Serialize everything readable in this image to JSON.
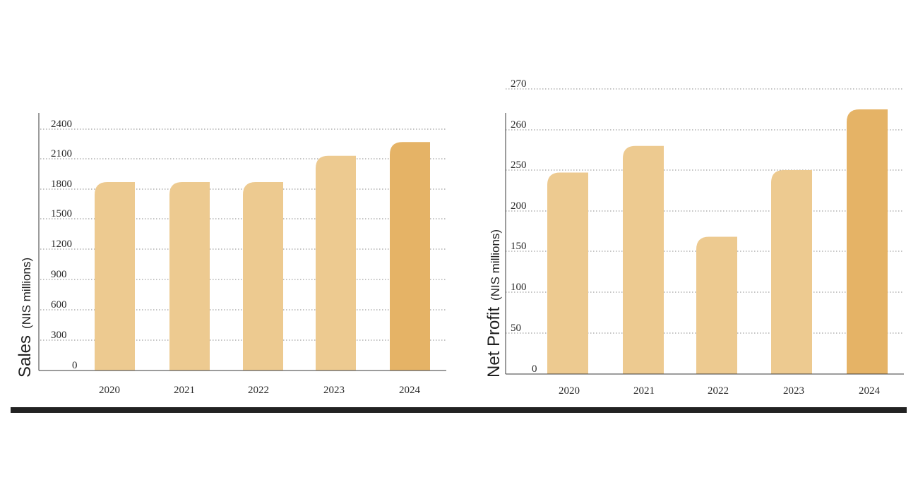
{
  "chart_data": [
    {
      "type": "bar",
      "categories": [
        "2020",
        "2021",
        "2022",
        "2023",
        "2024"
      ],
      "values": [
        1870,
        1870,
        1870,
        2130,
        2270
      ],
      "ylabel": "Sales",
      "ylabel_unit": "(NIS millions)",
      "yticks": [
        0,
        300,
        600,
        900,
        1200,
        1500,
        1800,
        2100,
        2400
      ],
      "ylim": [
        0,
        2400
      ],
      "grid": true,
      "colors": [
        "#edca90",
        "#edca90",
        "#edca90",
        "#edca90",
        "#e5b366"
      ]
    },
    {
      "type": "bar",
      "categories": [
        "2020",
        "2021",
        "2022",
        "2023",
        "2024"
      ],
      "values": [
        247,
        256,
        168,
        250,
        265
      ],
      "ylabel": "Net Profit",
      "ylabel_unit": "(NIS millions)",
      "yticks": [
        0,
        50,
        100,
        150,
        200,
        250,
        260,
        270
      ],
      "ylim": [
        0,
        270
      ],
      "grid": true,
      "colors": [
        "#edca90",
        "#edca90",
        "#edca90",
        "#edca90",
        "#e5b366"
      ]
    }
  ]
}
